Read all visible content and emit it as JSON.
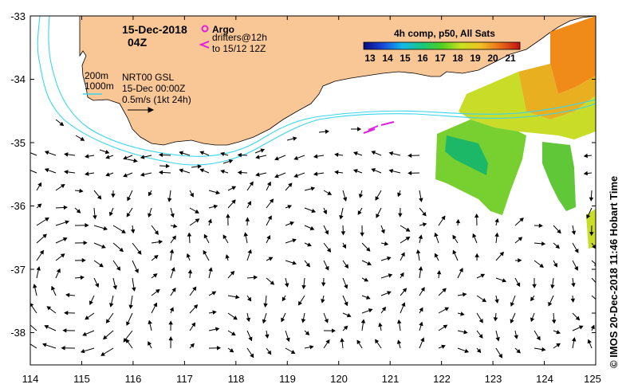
{
  "map": {
    "date_title": "15-Dec-2018",
    "time_title": "04Z",
    "lon_ticks": [
      "114",
      "115",
      "116",
      "117",
      "118",
      "119",
      "120",
      "121",
      "122",
      "123",
      "124",
      "125"
    ],
    "lat_ticks": [
      "-33",
      "-34",
      "-35",
      "-36",
      "-37",
      "-38"
    ],
    "land_color": "#f9c796",
    "contour_color": "#38d6ee"
  },
  "legend": {
    "argo_label": "Argo",
    "drifters_label": "drifters@12h",
    "drifters_sub": "to 15/12 12Z",
    "marker_color": "#e020e0"
  },
  "sst": {
    "title": "4h comp, p50, All Sats",
    "ticks": [
      "13",
      "14",
      "15",
      "16",
      "17",
      "18",
      "19",
      "20",
      "21"
    ]
  },
  "info": {
    "contour_200": "200m",
    "contour_1000": "1000m",
    "source": "NRT00 GSL",
    "date": "15-Dec 00:00Z",
    "scale": "0.5m/s (1kt 24h)"
  },
  "credit": "© IMOS 20-Dec-2018 11:46 Hobart Time"
}
